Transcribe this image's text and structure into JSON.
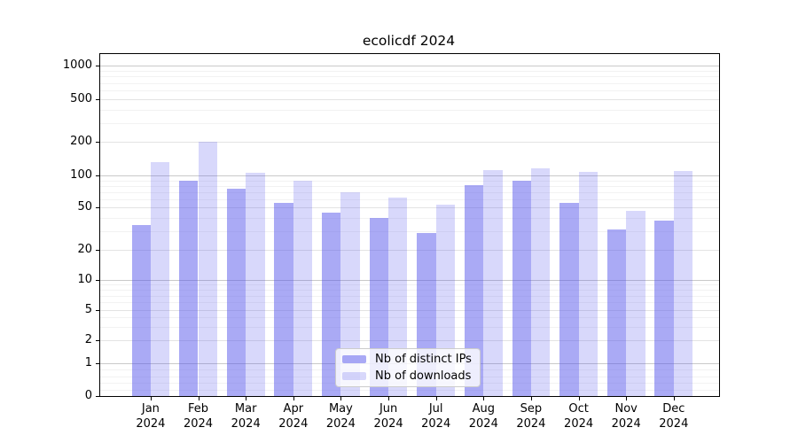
{
  "chart_data": {
    "type": "bar",
    "title": "ecolicdf 2024",
    "year": "2024",
    "categories": [
      "Jan",
      "Feb",
      "Mar",
      "Apr",
      "May",
      "Jun",
      "Jul",
      "Aug",
      "Sep",
      "Oct",
      "Nov",
      "Dec"
    ],
    "series": [
      {
        "name": "Nb of distinct IPs",
        "values": [
          34,
          89,
          75,
          55,
          45,
          40,
          29,
          81,
          89,
          55,
          31,
          38
        ],
        "color": "rgba(85,85,236,0.5)"
      },
      {
        "name": "Nb of downloads",
        "values": [
          131,
          202,
          105,
          89,
          70,
          62,
          53,
          112,
          115,
          108,
          47,
          110
        ],
        "color": "rgba(85,85,236,0.23)"
      }
    ],
    "xlabel": "",
    "ylabel": "",
    "y_scale": "symlog",
    "y_ticks": [
      1000,
      500,
      200,
      100,
      50,
      20,
      10,
      5,
      2,
      1,
      0
    ],
    "ylim": [
      0,
      1300
    ],
    "legend": {
      "position": "lower center",
      "labels": [
        "Nb of distinct IPs",
        "Nb of downloads"
      ]
    },
    "grid": {
      "on": true,
      "major_values": [
        1,
        10,
        100,
        1000
      ],
      "minor_labeled_values": [
        2,
        5,
        20,
        50,
        200,
        500
      ],
      "sub_values": [
        0.2,
        0.4,
        0.6,
        0.8,
        3,
        4,
        6,
        7,
        8,
        9,
        30,
        40,
        60,
        70,
        80,
        90,
        300,
        400,
        600,
        700,
        800,
        900
      ],
      "major_color": "#c9c9c9",
      "minor_color": "#e3e3e3",
      "sub_color": "#f2f2f2"
    },
    "y_anchor_fracs": [
      [
        0,
        1.0
      ],
      [
        1,
        0.9041
      ],
      [
        2,
        0.8376
      ],
      [
        5,
        0.7487
      ],
      [
        10,
        0.6606
      ],
      [
        20,
        0.5717
      ],
      [
        50,
        0.449
      ],
      [
        100,
        0.3549
      ],
      [
        200,
        0.2565
      ],
      [
        500,
        0.1313
      ],
      [
        1000,
        0.0345
      ]
    ]
  }
}
